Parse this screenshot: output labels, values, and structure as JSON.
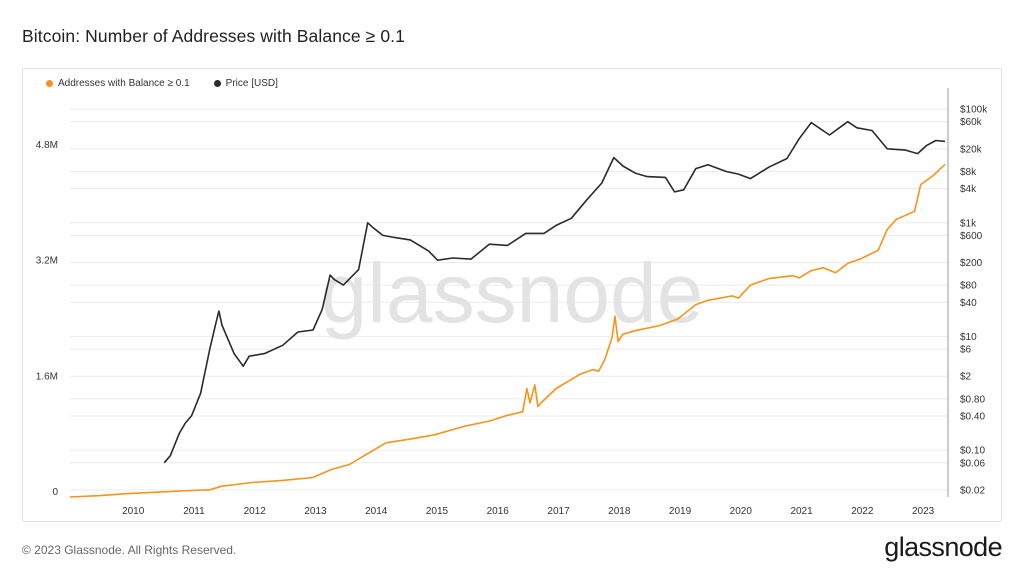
{
  "header": {
    "title": "Bitcoin: Number of Addresses with Balance ≥ 0.1"
  },
  "footer": {
    "copyright": "© 2023 Glassnode. All Rights Reserved.",
    "brand": "glassnode"
  },
  "watermark": "glassnode",
  "colors": {
    "addresses": "#f7931a",
    "price": "#2b2b2b",
    "grid": "#ececec",
    "watermark": "#e3e3e3"
  },
  "chart_data": {
    "type": "line",
    "title": "Bitcoin: Number of Addresses with Balance ≥ 0.1",
    "legend_position": "top-left",
    "grid": true,
    "x_ticks": [
      "2010",
      "2011",
      "2012",
      "2013",
      "2014",
      "2015",
      "2016",
      "2017",
      "2018",
      "2019",
      "2020",
      "2021",
      "2022",
      "2023"
    ],
    "xlim": [
      2009.0,
      2023.45
    ],
    "y_left": {
      "ticks": [
        0,
        1600000,
        3200000,
        4800000
      ],
      "tick_labels": [
        "0",
        "1.6M",
        "3.2M",
        "4.8M"
      ],
      "ylim": [
        0,
        5600000
      ]
    },
    "y_right": {
      "scale": "log",
      "ticks": [
        0.02,
        0.06,
        0.1,
        0.4,
        0.8,
        2,
        6,
        10,
        40,
        80,
        200,
        600,
        1000,
        4000,
        8000,
        20000,
        60000,
        100000
      ],
      "tick_labels": [
        "$0.02",
        "$0.06",
        "$0.10",
        "$0.40",
        "$0.80",
        "$2",
        "$6",
        "$10",
        "$40",
        "$80",
        "$200",
        "$600",
        "$1k",
        "$4k",
        "$8k",
        "$20k",
        "$60k",
        "$100k"
      ]
    },
    "series": [
      {
        "name": "Addresses with Balance ≥ 0.1",
        "axis": "left",
        "x": [
          2009.0,
          2009.5,
          2010.0,
          2010.5,
          2011.0,
          2011.3,
          2011.5,
          2012.0,
          2012.5,
          2013.0,
          2013.3,
          2013.6,
          2013.9,
          2014.2,
          2014.6,
          2015.0,
          2015.5,
          2015.9,
          2016.2,
          2016.45,
          2016.52,
          2016.57,
          2016.65,
          2016.7,
          2016.75,
          2017.0,
          2017.4,
          2017.6,
          2017.7,
          2017.8,
          2017.92,
          2017.97,
          2018.02,
          2018.1,
          2018.3,
          2018.7,
          2019.0,
          2019.3,
          2019.5,
          2019.9,
          2020.0,
          2020.2,
          2020.5,
          2020.9,
          2021.0,
          2021.2,
          2021.4,
          2021.6,
          2021.8,
          2022.0,
          2022.3,
          2022.45,
          2022.6,
          2022.9,
          2023.0,
          2023.2,
          2023.4
        ],
        "values": [
          0,
          20000,
          50000,
          70000,
          90000,
          100000,
          150000,
          200000,
          230000,
          270000,
          380000,
          450000,
          600000,
          750000,
          800000,
          860000,
          980000,
          1050000,
          1130000,
          1180000,
          1500000,
          1300000,
          1550000,
          1250000,
          1300000,
          1500000,
          1700000,
          1760000,
          1740000,
          1900000,
          2200000,
          2500000,
          2150000,
          2250000,
          2300000,
          2370000,
          2460000,
          2660000,
          2720000,
          2780000,
          2750000,
          2930000,
          3020000,
          3060000,
          3030000,
          3130000,
          3170000,
          3100000,
          3230000,
          3290000,
          3410000,
          3700000,
          3840000,
          3950000,
          4320000,
          4440000,
          4600000
        ]
      },
      {
        "name": "Price [USD]",
        "axis": "right",
        "x": [
          2010.55,
          2010.65,
          2010.8,
          2010.9,
          2011.0,
          2011.15,
          2011.3,
          2011.4,
          2011.45,
          2011.5,
          2011.7,
          2011.85,
          2011.95,
          2012.2,
          2012.5,
          2012.75,
          2013.0,
          2013.15,
          2013.28,
          2013.35,
          2013.5,
          2013.75,
          2013.9,
          2014.0,
          2014.15,
          2014.35,
          2014.6,
          2014.9,
          2015.05,
          2015.3,
          2015.6,
          2015.9,
          2016.2,
          2016.5,
          2016.8,
          2017.0,
          2017.25,
          2017.5,
          2017.75,
          2017.95,
          2018.1,
          2018.3,
          2018.5,
          2018.8,
          2018.95,
          2019.1,
          2019.3,
          2019.5,
          2019.8,
          2020.0,
          2020.2,
          2020.5,
          2020.8,
          2021.0,
          2021.2,
          2021.5,
          2021.8,
          2021.95,
          2022.2,
          2022.45,
          2022.75,
          2022.95,
          2023.1,
          2023.25,
          2023.4
        ],
        "values": [
          0.06,
          0.08,
          0.2,
          0.3,
          0.4,
          1.0,
          6.0,
          17,
          28,
          16,
          5,
          3,
          4.5,
          5,
          7,
          12,
          13,
          30,
          120,
          100,
          80,
          150,
          1000,
          800,
          600,
          550,
          500,
          320,
          220,
          240,
          230,
          420,
          400,
          650,
          650,
          900,
          1200,
          2500,
          5000,
          14000,
          10000,
          7500,
          6500,
          6300,
          3500,
          3800,
          9000,
          10500,
          8000,
          7200,
          6000,
          9500,
          13500,
          30000,
          58000,
          35000,
          60000,
          47000,
          42000,
          20000,
          19000,
          16500,
          23000,
          28000,
          27000
        ]
      }
    ]
  }
}
